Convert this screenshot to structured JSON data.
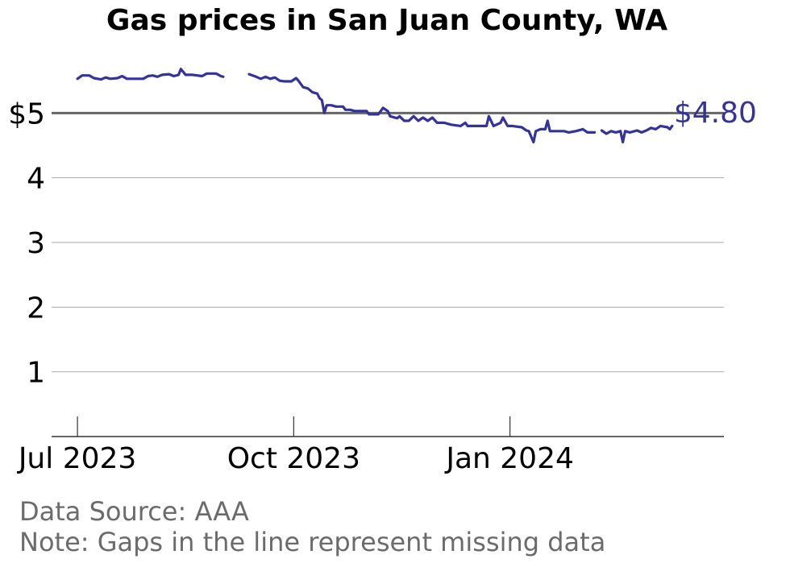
{
  "chart_data": {
    "type": "line",
    "title": "Gas prices in San Juan County, WA",
    "y_ticks": [
      {
        "value": 1,
        "label": "1"
      },
      {
        "value": 2,
        "label": "2"
      },
      {
        "value": 3,
        "label": "3"
      },
      {
        "value": 4,
        "label": "4"
      },
      {
        "value": 5,
        "label": "$5"
      }
    ],
    "ylim": [
      0,
      6
    ],
    "x_ticks": [
      {
        "date": "2023-07-01",
        "label": "Jul 2023"
      },
      {
        "date": "2023-10-01",
        "label": "Oct 2023"
      },
      {
        "date": "2024-01-01",
        "label": "Jan 2024"
      }
    ],
    "xlim": [
      "2023-06-20",
      "2024-04-01"
    ],
    "reference_line": 5,
    "grid": true,
    "end_label": "$4.80",
    "line_color": "#333399",
    "series": [
      {
        "segments": [
          [
            [
              "2023-07-01",
              5.53
            ],
            [
              "2023-07-03",
              5.58
            ],
            [
              "2023-07-06",
              5.58
            ],
            [
              "2023-07-08",
              5.54
            ],
            [
              "2023-07-11",
              5.52
            ],
            [
              "2023-07-13",
              5.55
            ],
            [
              "2023-07-15",
              5.53
            ],
            [
              "2023-07-18",
              5.54
            ],
            [
              "2023-07-20",
              5.57
            ],
            [
              "2023-07-22",
              5.53
            ],
            [
              "2023-07-26",
              5.53
            ],
            [
              "2023-07-29",
              5.53
            ],
            [
              "2023-07-31",
              5.57
            ],
            [
              "2023-08-02",
              5.58
            ],
            [
              "2023-08-04",
              5.56
            ],
            [
              "2023-08-06",
              5.59
            ],
            [
              "2023-08-09",
              5.6
            ],
            [
              "2023-08-11",
              5.57
            ],
            [
              "2023-08-13",
              5.59
            ],
            [
              "2023-08-14",
              5.68
            ],
            [
              "2023-08-16",
              5.59
            ],
            [
              "2023-08-19",
              5.59
            ],
            [
              "2023-08-23",
              5.57
            ],
            [
              "2023-08-25",
              5.61
            ],
            [
              "2023-08-29",
              5.61
            ],
            [
              "2023-08-31",
              5.57
            ],
            [
              "2023-09-01",
              5.56
            ]
          ],
          [
            [
              "2023-09-12",
              5.6
            ],
            [
              "2023-09-15",
              5.56
            ],
            [
              "2023-09-17",
              5.53
            ],
            [
              "2023-09-19",
              5.56
            ],
            [
              "2023-09-21",
              5.53
            ],
            [
              "2023-09-23",
              5.55
            ],
            [
              "2023-09-25",
              5.5
            ],
            [
              "2023-09-27",
              5.49
            ],
            [
              "2023-09-30",
              5.49
            ],
            [
              "2023-10-02",
              5.54
            ],
            [
              "2023-10-03",
              5.5
            ],
            [
              "2023-10-05",
              5.4
            ],
            [
              "2023-10-07",
              5.38
            ],
            [
              "2023-10-09",
              5.32
            ],
            [
              "2023-10-11",
              5.3
            ],
            [
              "2023-10-12",
              5.23
            ],
            [
              "2023-10-13",
              5.2
            ],
            [
              "2023-10-14",
              5.0
            ],
            [
              "2023-10-15",
              5.12
            ],
            [
              "2023-10-17",
              5.12
            ],
            [
              "2023-10-19",
              5.1
            ],
            [
              "2023-10-22",
              5.1
            ],
            [
              "2023-10-23",
              5.05
            ],
            [
              "2023-10-25",
              5.05
            ],
            [
              "2023-10-27",
              5.03
            ],
            [
              "2023-10-30",
              5.03
            ],
            [
              "2023-11-01",
              5.03
            ],
            [
              "2023-11-02",
              4.98
            ],
            [
              "2023-11-06",
              4.98
            ],
            [
              "2023-11-08",
              5.08
            ],
            [
              "2023-11-10",
              5.03
            ],
            [
              "2023-11-11",
              4.95
            ],
            [
              "2023-11-14",
              4.92
            ],
            [
              "2023-11-15",
              4.95
            ],
            [
              "2023-11-17",
              4.88
            ],
            [
              "2023-11-19",
              4.88
            ],
            [
              "2023-11-21",
              4.95
            ],
            [
              "2023-11-23",
              4.88
            ],
            [
              "2023-11-25",
              4.93
            ],
            [
              "2023-11-27",
              4.88
            ],
            [
              "2023-11-29",
              4.93
            ],
            [
              "2023-12-01",
              4.85
            ],
            [
              "2023-12-04",
              4.85
            ],
            [
              "2023-12-07",
              4.82
            ],
            [
              "2023-12-11",
              4.8
            ],
            [
              "2023-12-13",
              4.85
            ],
            [
              "2023-12-14",
              4.8
            ],
            [
              "2023-12-20",
              4.8
            ],
            [
              "2023-12-22",
              4.8
            ],
            [
              "2023-12-23",
              4.95
            ],
            [
              "2023-12-25",
              4.8
            ],
            [
              "2023-12-28",
              4.85
            ],
            [
              "2023-12-29",
              4.93
            ],
            [
              "2023-12-31",
              4.8
            ],
            [
              "2024-01-02",
              4.8
            ],
            [
              "2024-01-06",
              4.78
            ],
            [
              "2024-01-08",
              4.73
            ],
            [
              "2024-01-09",
              4.72
            ],
            [
              "2024-01-11",
              4.55
            ],
            [
              "2024-01-12",
              4.72
            ],
            [
              "2024-01-14",
              4.75
            ],
            [
              "2024-01-16",
              4.75
            ],
            [
              "2024-01-17",
              4.88
            ],
            [
              "2024-01-18",
              4.72
            ],
            [
              "2024-01-24",
              4.72
            ],
            [
              "2024-01-26",
              4.7
            ],
            [
              "2024-01-29",
              4.72
            ],
            [
              "2024-02-01",
              4.75
            ],
            [
              "2024-02-03",
              4.7
            ],
            [
              "2024-02-06",
              4.7
            ]
          ],
          [
            [
              "2024-02-09",
              4.73
            ],
            [
              "2024-02-11",
              4.68
            ],
            [
              "2024-02-13",
              4.72
            ],
            [
              "2024-02-15",
              4.7
            ],
            [
              "2024-02-17",
              4.72
            ],
            [
              "2024-02-18",
              4.55
            ],
            [
              "2024-02-19",
              4.72
            ],
            [
              "2024-02-21",
              4.7
            ],
            [
              "2024-02-24",
              4.73
            ],
            [
              "2024-02-26",
              4.7
            ],
            [
              "2024-02-28",
              4.73
            ],
            [
              "2024-03-01",
              4.77
            ],
            [
              "2024-03-03",
              4.75
            ],
            [
              "2024-03-05",
              4.8
            ],
            [
              "2024-03-08",
              4.78
            ],
            [
              "2024-03-09",
              4.75
            ],
            [
              "2024-03-10",
              4.8
            ]
          ]
        ]
      }
    ]
  },
  "footer": {
    "source": "Data Source: AAA",
    "note": "Note: Gaps in the line represent missing data"
  }
}
